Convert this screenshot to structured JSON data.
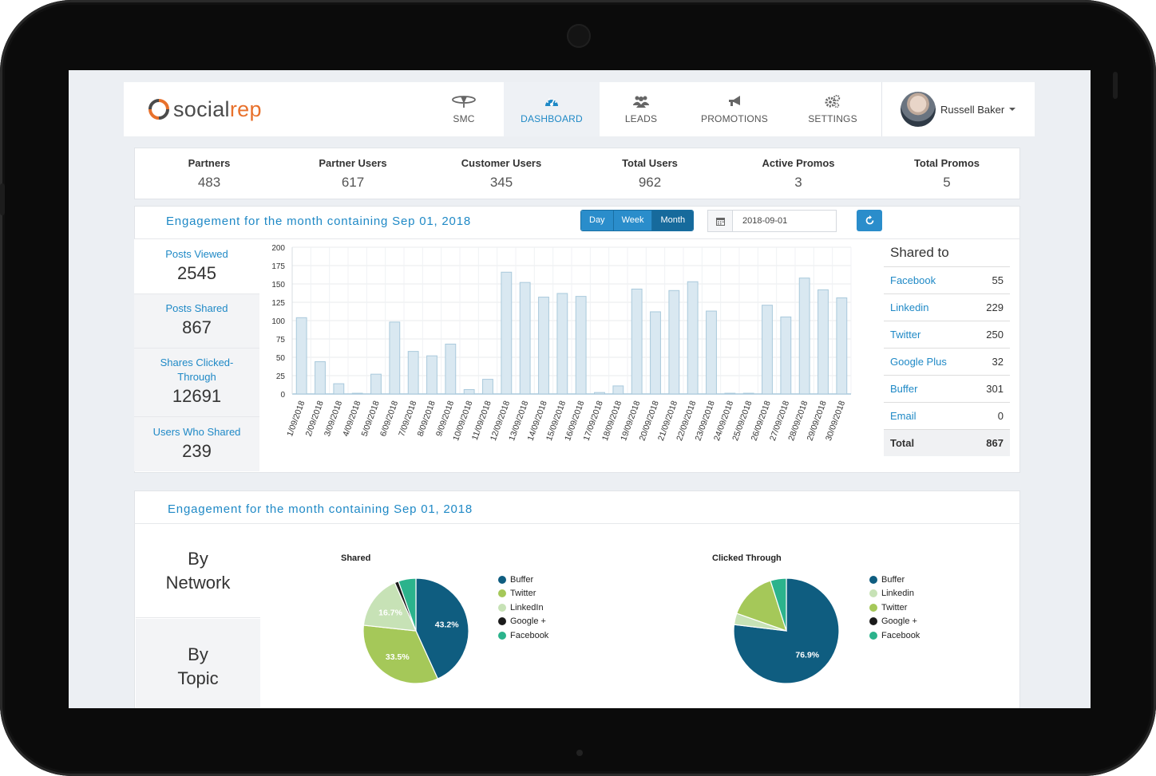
{
  "app": {
    "logo_prefix": "social",
    "logo_suffix": "rep"
  },
  "nav": {
    "items": [
      {
        "label": "SMC",
        "icon": "satellite-dish-icon"
      },
      {
        "label": "DASHBOARD",
        "icon": "dashboard-gauge-icon",
        "active": true
      },
      {
        "label": "LEADS",
        "icon": "users-icon"
      },
      {
        "label": "PROMOTIONS",
        "icon": "megaphone-icon"
      },
      {
        "label": "SETTINGS",
        "icon": "gears-icon"
      }
    ],
    "user_name": "Russell Baker"
  },
  "stats": [
    {
      "label": "Partners",
      "value": "483"
    },
    {
      "label": "Partner Users",
      "value": "617"
    },
    {
      "label": "Customer Users",
      "value": "345"
    },
    {
      "label": "Total Users",
      "value": "962"
    },
    {
      "label": "Active Promos",
      "value": "3"
    },
    {
      "label": "Total Promos",
      "value": "5"
    }
  ],
  "engagement": {
    "title": "Engagement for the month containing Sep 01, 2018",
    "range_buttons": [
      "Day",
      "Week",
      "Month"
    ],
    "selected_range": "Month",
    "date_value": "2018-09-01",
    "left_stats": [
      {
        "label": "Posts Viewed",
        "value": "2545"
      },
      {
        "label": "Posts Shared",
        "value": "867"
      },
      {
        "label": "Shares Clicked-Through",
        "value": "12691"
      },
      {
        "label": "Users Who Shared",
        "value": "239"
      }
    ],
    "shared_to": {
      "heading": "Shared to",
      "rows": [
        {
          "name": "Facebook",
          "value": "55"
        },
        {
          "name": "Linkedin",
          "value": "229"
        },
        {
          "name": "Twitter",
          "value": "250"
        },
        {
          "name": "Google Plus",
          "value": "32"
        },
        {
          "name": "Buffer",
          "value": "301"
        },
        {
          "name": "Email",
          "value": "0"
        }
      ],
      "total_label": "Total",
      "total_value": "867"
    }
  },
  "engagement2": {
    "title": "Engagement for the month containing Sep 01, 2018",
    "tabs": [
      {
        "line1": "By",
        "line2": "Network"
      },
      {
        "line1": "By",
        "line2": "Topic"
      }
    ]
  },
  "colors": {
    "accent": "#1f89c6",
    "bar_fill": "#d9e8f1",
    "bar_stroke": "#a9c9dc",
    "buffer": "#0f5d80",
    "twitter": "#a5c859",
    "linkedin": "#c7e2b6",
    "google": "#1b1b1b",
    "facebook": "#2bb38c"
  },
  "chart_data": [
    {
      "type": "bar",
      "title": "",
      "xlabel": "",
      "ylabel": "",
      "ylim": [
        0,
        200
      ],
      "yticks": [
        0,
        25,
        50,
        75,
        100,
        125,
        150,
        175,
        200
      ],
      "grid": true,
      "categories": [
        "1/09/2018",
        "2/09/2018",
        "3/09/2018",
        "4/09/2018",
        "5/09/2018",
        "6/09/2018",
        "7/09/2018",
        "8/09/2018",
        "9/09/2018",
        "10/09/2018",
        "11/09/2018",
        "12/09/2018",
        "13/09/2018",
        "14/09/2018",
        "15/09/2018",
        "16/09/2018",
        "17/09/2018",
        "18/09/2018",
        "19/09/2018",
        "20/09/2018",
        "21/09/2018",
        "22/09/2018",
        "23/09/2018",
        "24/09/2018",
        "25/09/2018",
        "26/09/2018",
        "27/09/2018",
        "28/09/2018",
        "29/09/2018",
        "30/09/2018"
      ],
      "values": [
        104,
        44,
        14,
        1,
        27,
        98,
        58,
        52,
        68,
        6,
        20,
        166,
        152,
        132,
        137,
        133,
        2,
        11,
        143,
        112,
        141,
        153,
        113,
        1,
        1,
        121,
        105,
        158,
        142,
        131
      ]
    },
    {
      "type": "pie",
      "title": "Shared",
      "legend": [
        "Buffer",
        "Twitter",
        "LinkedIn",
        "Google +",
        "Facebook"
      ],
      "legend_position": "right",
      "slices": [
        {
          "name": "Buffer",
          "value": 43.2,
          "color": "#0f5d80"
        },
        {
          "name": "Twitter",
          "value": 33.5,
          "color": "#a5c859"
        },
        {
          "name": "LinkedIn",
          "value": 16.7,
          "color": "#c7e2b6"
        },
        {
          "name": "Google +",
          "value": 1.2,
          "color": "#1b1b1b"
        },
        {
          "name": "Facebook",
          "value": 5.4,
          "color": "#2bb38c"
        }
      ],
      "shown_labels": [
        "43.2%",
        "33.5%",
        "16.7%"
      ]
    },
    {
      "type": "pie",
      "title": "Clicked Through",
      "legend": [
        "Buffer",
        "Linkedin",
        "Twitter",
        "Google +",
        "Facebook"
      ],
      "legend_position": "right",
      "slices": [
        {
          "name": "Buffer",
          "value": 76.9,
          "color": "#0f5d80"
        },
        {
          "name": "Linkedin",
          "value": 3.5,
          "color": "#c7e2b6"
        },
        {
          "name": "Twitter",
          "value": 14.7,
          "color": "#a5c859"
        },
        {
          "name": "Google +",
          "value": 0.0,
          "color": "#1b1b1b"
        },
        {
          "name": "Facebook",
          "value": 4.9,
          "color": "#2bb38c"
        }
      ],
      "shown_labels": [
        "76.9%"
      ]
    }
  ]
}
